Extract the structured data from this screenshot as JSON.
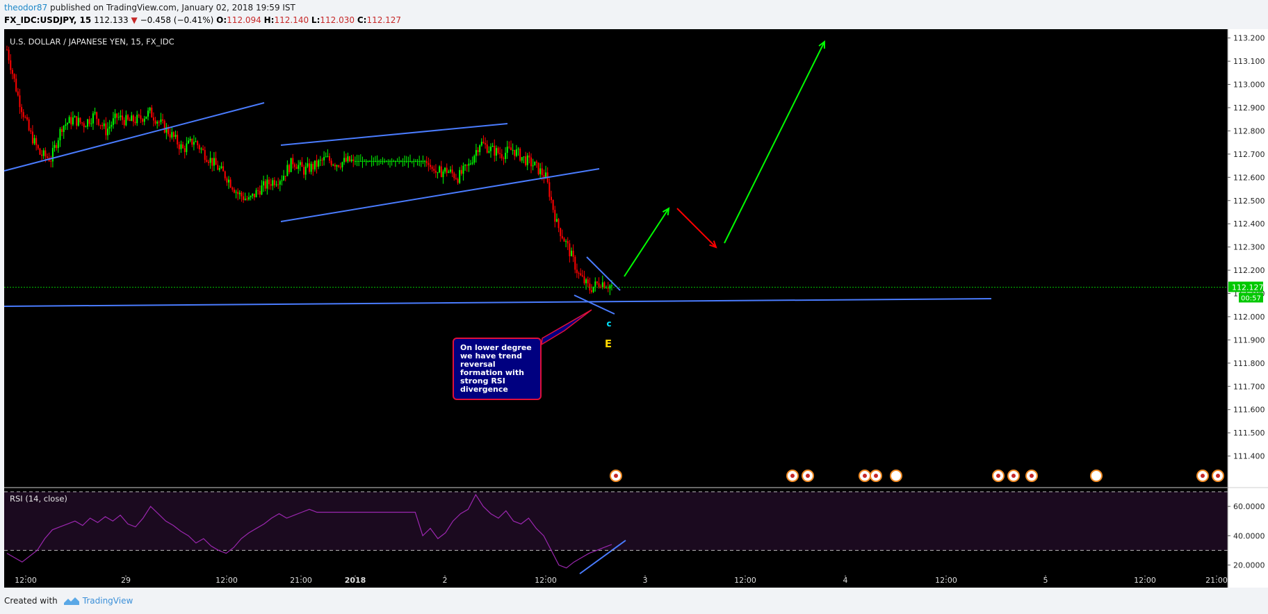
{
  "header": {
    "user": "theodor87",
    "published": " published on TradingView.com, January 02, 2018 19:59 IST"
  },
  "ohlc": {
    "symbol": "FX_IDC:USDJPY, 15",
    "price": "112.133",
    "change_arrow": "▼",
    "change": "−0.458 (−0.41%)",
    "o_label": "O:",
    "o": "112.094",
    "h_label": "H:",
    "h": "112.140",
    "l_label": "L:",
    "l": "112.030",
    "c_label": "C:",
    "c": "112.127"
  },
  "footer": {
    "created_with": "Created with",
    "brand": "TradingView"
  },
  "callout": {
    "text": "On lower degree we have trend reversal formation with strong RSI divergence"
  },
  "colors": {
    "background": "#000000",
    "up": "#00ff00",
    "down": "#ff0000",
    "trendline": "#4a7cff",
    "rsi_line": "#9c27b0",
    "rsi_band": "#1b0a1f",
    "price_line": "#00c000",
    "label_c": "#00e5ff",
    "label_E": "#ffd600"
  },
  "chart_data": [
    {
      "type": "candlestick",
      "title": "U.S. DOLLAR / JAPANESE YEN, 15, FX_IDC",
      "ylim": [
        111.3,
        113.22
      ],
      "y_ticks": [
        "113.200",
        "113.100",
        "113.000",
        "112.900",
        "112.800",
        "112.700",
        "112.600",
        "112.500",
        "112.400",
        "112.300",
        "112.200",
        "112.100",
        "112.000",
        "111.900",
        "111.800",
        "111.700",
        "111.600",
        "111.500",
        "111.400"
      ],
      "last_price": "112.127",
      "countdown": "00:57",
      "x_ticks": [
        "12:00",
        "29",
        "12:00",
        "21:00",
        "2018",
        "2",
        "12:00",
        "3",
        "12:00",
        "4",
        "12:00",
        "5",
        "12:00",
        "21:00"
      ],
      "close_path": [
        [
          0,
          113.15
        ],
        [
          3,
          112.95
        ],
        [
          6,
          112.8
        ],
        [
          9,
          112.7
        ],
        [
          12,
          112.68
        ],
        [
          15,
          112.82
        ],
        [
          18,
          112.85
        ],
        [
          21,
          112.83
        ],
        [
          24,
          112.87
        ],
        [
          27,
          112.8
        ],
        [
          30,
          112.86
        ],
        [
          33,
          112.84
        ],
        [
          36,
          112.85
        ],
        [
          39,
          112.88
        ],
        [
          42,
          112.83
        ],
        [
          45,
          112.78
        ],
        [
          48,
          112.72
        ],
        [
          51,
          112.76
        ],
        [
          54,
          112.7
        ],
        [
          57,
          112.65
        ],
        [
          60,
          112.6
        ],
        [
          63,
          112.53
        ],
        [
          66,
          112.5
        ],
        [
          69,
          112.55
        ],
        [
          72,
          112.58
        ],
        [
          75,
          112.6
        ],
        [
          78,
          112.67
        ],
        [
          81,
          112.63
        ],
        [
          84,
          112.65
        ],
        [
          87,
          112.68
        ],
        [
          90,
          112.66
        ],
        [
          93,
          112.67
        ],
        [
          96,
          112.67
        ],
        [
          99,
          112.67
        ],
        [
          102,
          112.67
        ],
        [
          105,
          112.67
        ],
        [
          108,
          112.67
        ],
        [
          111,
          112.67
        ],
        [
          114,
          112.67
        ],
        [
          117,
          112.62
        ],
        [
          120,
          112.63
        ],
        [
          123,
          112.6
        ],
        [
          126,
          112.65
        ],
        [
          129,
          112.75
        ],
        [
          132,
          112.72
        ],
        [
          135,
          112.7
        ],
        [
          138,
          112.72
        ],
        [
          141,
          112.68
        ],
        [
          144,
          112.65
        ],
        [
          147,
          112.6
        ],
        [
          150,
          112.4
        ],
        [
          153,
          112.3
        ],
        [
          156,
          112.18
        ],
        [
          159,
          112.12
        ],
        [
          162,
          112.15
        ],
        [
          165,
          112.13
        ]
      ],
      "annotations": {
        "wave_labels": [
          "c",
          "E"
        ],
        "projection": [
          {
            "from": [
              112.18,
              "now"
            ],
            "to": [
              112.47,
              "+1"
            ],
            "color": "up"
          },
          {
            "from": [
              112.46,
              "+1"
            ],
            "to": [
              112.29,
              "+2"
            ],
            "color": "down"
          },
          {
            "from": [
              112.31,
              "+2"
            ],
            "to": [
              113.15,
              "+3"
            ],
            "color": "up"
          }
        ]
      }
    },
    {
      "type": "line",
      "title": "RSI (14, close)",
      "ylim": [
        15,
        70
      ],
      "y_ticks": [
        "60.0000",
        "40.0000",
        "20.0000"
      ],
      "bands": [
        70,
        30
      ],
      "values": [
        28,
        25,
        22,
        26,
        30,
        38,
        44,
        46,
        48,
        50,
        47,
        52,
        49,
        53,
        50,
        54,
        48,
        46,
        52,
        60,
        55,
        50,
        47,
        43,
        40,
        35,
        38,
        33,
        30,
        28,
        32,
        38,
        42,
        45,
        48,
        52,
        55,
        52,
        54,
        56,
        58,
        56,
        56,
        56,
        56,
        56,
        56,
        56,
        56,
        56,
        56,
        56,
        56,
        56,
        56,
        40,
        45,
        38,
        42,
        50,
        55,
        58,
        68,
        60,
        55,
        52,
        57,
        50,
        48,
        52,
        45,
        40,
        30,
        20,
        18,
        22,
        25,
        28,
        30,
        32,
        34
      ]
    }
  ]
}
